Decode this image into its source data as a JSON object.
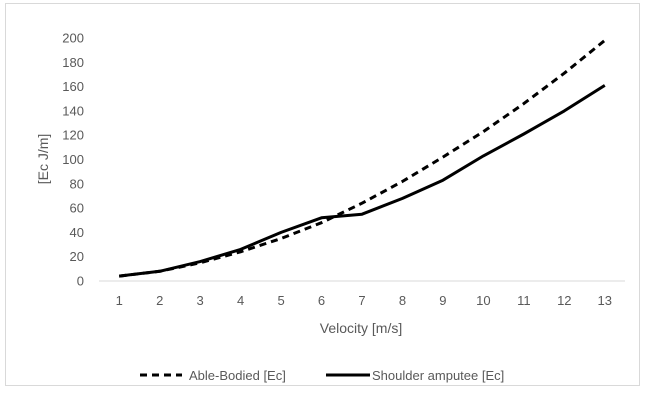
{
  "chart_data": {
    "type": "line",
    "title": "",
    "xlabel": "Velocity [m/s]",
    "ylabel": "[Ec J/m]",
    "x": [
      1,
      2,
      3,
      4,
      5,
      6,
      7,
      8,
      9,
      10,
      11,
      12,
      13
    ],
    "ylim": [
      0,
      200
    ],
    "yticks": [
      0,
      20,
      40,
      60,
      80,
      100,
      120,
      140,
      160,
      180,
      200
    ],
    "grid": false,
    "legend_position": "bottom",
    "series": [
      {
        "name": "Able-Bodied [Ec]",
        "style": "dashed",
        "color": "#000000",
        "values": [
          4,
          8,
          15,
          24,
          35,
          48,
          64,
          82,
          102,
          123,
          146,
          171,
          198
        ]
      },
      {
        "name": "Shoulder amputee [Ec]",
        "style": "solid",
        "color": "#000000",
        "values": [
          4,
          8,
          16,
          26,
          40,
          52,
          55,
          68,
          83,
          103,
          121,
          140,
          161
        ]
      }
    ]
  }
}
